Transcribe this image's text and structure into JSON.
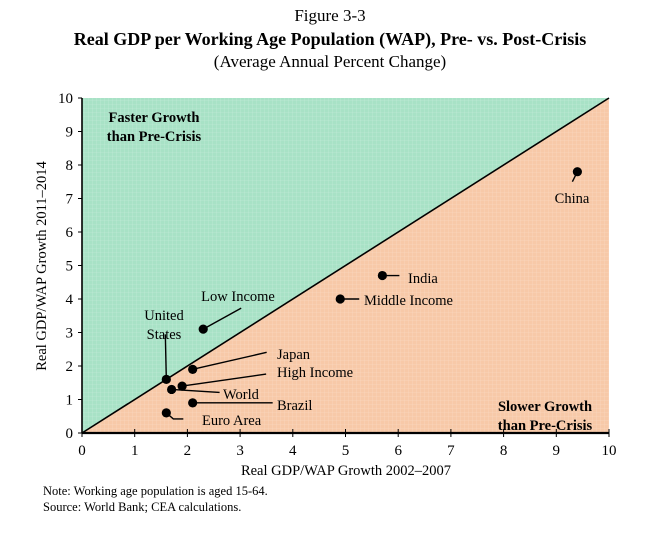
{
  "figure_label": "Figure 3-3",
  "notes": {
    "note": "Note: Working age population is aged 15-64.",
    "source": "Source: World Bank; CEA calculations."
  },
  "colors": {
    "above_region": "#a8e2c6",
    "below_region": "#f7c9a8",
    "grid": "#ffffff",
    "diagonal": "#000000",
    "points": "#000000"
  },
  "chart_data": {
    "type": "scatter",
    "title": "Real GDP per Working Age Population (WAP), Pre- vs. Post-Crisis",
    "subtitle": "(Average Annual Percent Change)",
    "xlabel": "Real GDP/WAP Growth 2002–2007",
    "ylabel": "Real GDP/WAP Growth 2011–2014",
    "xlim": [
      0,
      10
    ],
    "ylim": [
      0,
      10
    ],
    "xticks": [
      0,
      1,
      2,
      3,
      4,
      5,
      6,
      7,
      8,
      9,
      10
    ],
    "yticks": [
      0,
      1,
      2,
      3,
      4,
      5,
      6,
      7,
      8,
      9,
      10
    ],
    "reference_line": {
      "type": "45-degree",
      "from": [
        0,
        0
      ],
      "to": [
        10,
        10
      ]
    },
    "region_labels": [
      {
        "text": [
          "Faster Growth",
          "than Pre-Crisis"
        ],
        "region": "above-diagonal",
        "position": "top-left"
      },
      {
        "text": [
          "Slower Growth",
          "than Pre-Crisis"
        ],
        "region": "below-diagonal",
        "position": "bottom-right"
      }
    ],
    "points": [
      {
        "label": [
          "China"
        ],
        "x": 9.4,
        "y": 7.8
      },
      {
        "label": [
          "India"
        ],
        "x": 5.7,
        "y": 4.7
      },
      {
        "label": [
          "Middle Income"
        ],
        "x": 4.9,
        "y": 4.0
      },
      {
        "label": [
          "Low Income"
        ],
        "x": 2.3,
        "y": 3.1
      },
      {
        "label": [
          "Japan"
        ],
        "x": 2.1,
        "y": 1.9
      },
      {
        "label": [
          "High Income"
        ],
        "x": 1.9,
        "y": 1.4
      },
      {
        "label": [
          "United",
          "States"
        ],
        "x": 1.6,
        "y": 1.6
      },
      {
        "label": [
          "World"
        ],
        "x": 1.7,
        "y": 1.3
      },
      {
        "label": [
          "Brazil"
        ],
        "x": 2.1,
        "y": 0.9
      },
      {
        "label": [
          "Euro Area"
        ],
        "x": 1.6,
        "y": 0.6
      }
    ],
    "grid": false,
    "legend": "none"
  }
}
